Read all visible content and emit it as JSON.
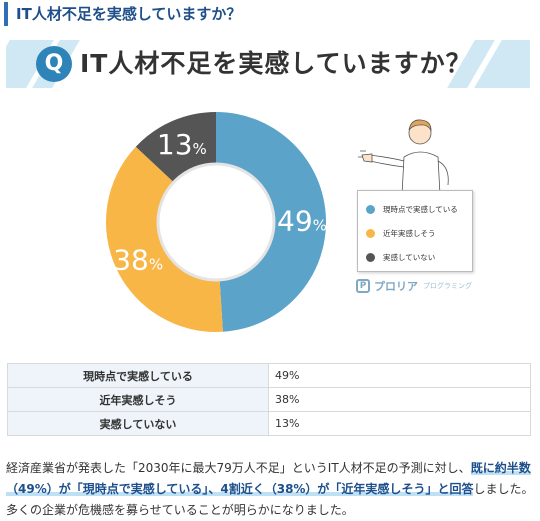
{
  "heading": "IT人材不足を実感していますか？",
  "banner": {
    "badge": "Q",
    "title": "IT人材不足を実感していますか？"
  },
  "chart_data": {
    "type": "pie",
    "categories": [
      "現時点で実感している",
      "近年実感しそう",
      "実感していない"
    ],
    "values": [
      49,
      38,
      13
    ],
    "labels": [
      "49%",
      "38%",
      "13%"
    ],
    "colors": [
      "#5ba3c9",
      "#f7b646",
      "#555555"
    ],
    "legend_position": "right"
  },
  "legend": [
    {
      "label": "現時点で実感している",
      "color": "#5ba3c9"
    },
    {
      "label": "近年実感しそう",
      "color": "#f7b646"
    },
    {
      "label": "実感していない",
      "color": "#555555"
    }
  ],
  "brand": {
    "name": "プロリア",
    "sub": "プログラミング"
  },
  "table": [
    {
      "label": "現時点で実感している",
      "value": "49%"
    },
    {
      "label": "近年実感しそう",
      "value": "38%"
    },
    {
      "label": "実感していない",
      "value": "13%"
    }
  ],
  "paragraph": {
    "before": "経済産業省が発表した「2030年に最大79万人不足」というIT人材不足の予測に対し、",
    "highlight": "既に約半数（49%）が「現時点で実感している」、4割近く（38%）が「近年実感しそう」と回答",
    "after": "しました。多くの企業が危機感を募らせていることが明らかになりました。"
  }
}
